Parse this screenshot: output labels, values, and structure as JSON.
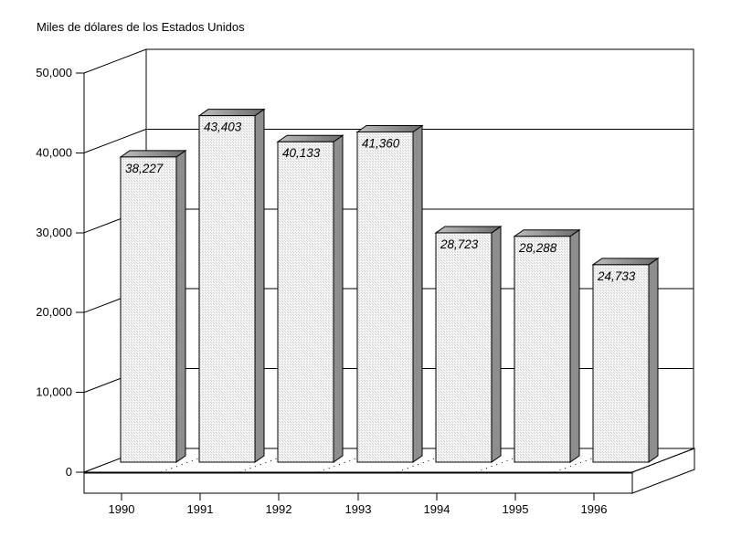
{
  "chart_data": {
    "type": "bar",
    "style": "3d-column",
    "title": "Miles de dólares de los Estados Unidos",
    "categories": [
      "1990",
      "1991",
      "1992",
      "1993",
      "1994",
      "1995",
      "1996"
    ],
    "values": [
      38227,
      43403,
      40133,
      41360,
      28723,
      28288,
      24733
    ],
    "data_labels": [
      "38,227",
      "43,403",
      "40,133",
      "41,360",
      "28,723",
      "28,288",
      "24,733"
    ],
    "xlabel": "",
    "ylabel": "",
    "ylim": [
      0,
      50000
    ],
    "y_ticks": [
      0,
      10000,
      20000,
      30000,
      40000,
      50000
    ],
    "y_tick_labels": [
      "0",
      "10,000",
      "20,000",
      "30,000",
      "40,000",
      "50,000"
    ],
    "grid": "horizontal-on-back-wall",
    "legend": "none",
    "colors": {
      "background": "#ffffff",
      "outline": "#000000",
      "wall": "#ffffff",
      "floor": "#ffffff",
      "bar_front_base": "#f5f5f5",
      "bar_front_dot": "#cccccc",
      "bar_side": "#8e8e8e",
      "bar_top_light": "#bdbdbd",
      "bar_top_dark": "#6b6b6b"
    }
  }
}
